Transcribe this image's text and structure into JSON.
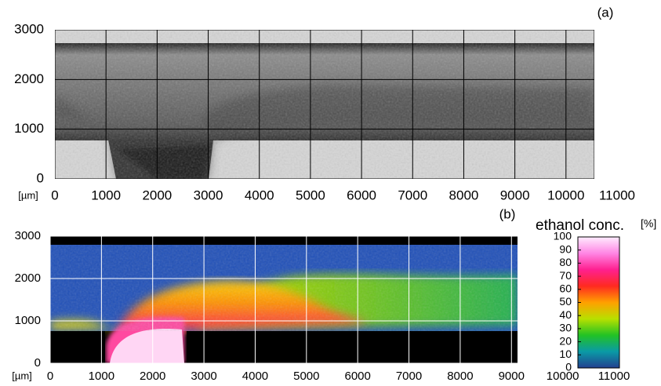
{
  "chart_data": [
    {
      "type": "heatmap",
      "label": "(a)",
      "colormap": "gray",
      "x_label": "[µm]",
      "xlim": [
        0,
        11000
      ],
      "xticks": [
        0,
        1000,
        2000,
        3000,
        4000,
        5000,
        6000,
        7000,
        8000,
        9000,
        10000,
        11000
      ],
      "ylim": [
        0,
        3000
      ],
      "yticks": [
        0,
        1000,
        2000,
        3000
      ],
      "grid": true,
      "grid_color": "#000000"
    },
    {
      "type": "heatmap",
      "label": "(b)",
      "colormap": "jet-like",
      "x_label": "[µm]",
      "xlim": [
        0,
        11000
      ],
      "xticks": [
        0,
        1000,
        2000,
        3000,
        4000,
        5000,
        6000,
        7000,
        8000,
        9000,
        10000,
        11000
      ],
      "ylim": [
        0,
        3000
      ],
      "yticks": [
        0,
        1000,
        2000,
        3000
      ],
      "grid": true,
      "grid_color": "#ffffff",
      "colorbar": {
        "title": "ethanol conc.",
        "unit": "[%]",
        "clim": [
          0,
          100
        ],
        "ticks": [
          0,
          10,
          20,
          30,
          40,
          50,
          60,
          70,
          80,
          90,
          100
        ],
        "colors": [
          "#23408f",
          "#0a9aa6",
          "#22c224",
          "#b8e000",
          "#ffa000",
          "#ff2a20",
          "#ff2090",
          "#ff86e4",
          "#ffecff"
        ]
      }
    }
  ]
}
